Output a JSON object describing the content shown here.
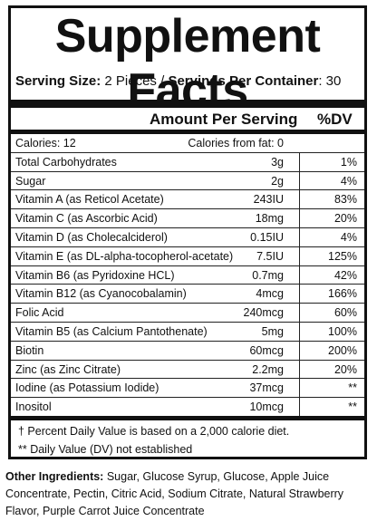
{
  "title": "Supplement Facts",
  "serving": {
    "size_label": "Serving Size:",
    "size_value": "2 Pieces",
    "separator": "/",
    "per_container_label": "Servings Per Container",
    "per_container_value": ": 30"
  },
  "headers": {
    "amount": "Amount Per Serving",
    "dv": "%DV"
  },
  "calories": {
    "label": "Calories: 12",
    "from_fat": "Calories from fat: 0"
  },
  "nutrients": [
    {
      "name": "Total Carbohydrates",
      "amount": "3g",
      "dv": "1%"
    },
    {
      "name": "Sugar",
      "amount": "2g",
      "dv": "4%"
    },
    {
      "name": "Vitamin A (as Reticol Acetate)",
      "amount": "243IU",
      "dv": "83%"
    },
    {
      "name": "Vitamin C (as Ascorbic Acid)",
      "amount": "18mg",
      "dv": "20%"
    },
    {
      "name": "Vitamin D (as Cholecalciderol)",
      "amount": "0.15IU",
      "dv": "4%"
    },
    {
      "name": "Vitamin E (as DL-alpha-tocopherol-acetate)",
      "amount": "7.5IU",
      "dv": "125%"
    },
    {
      "name": "Vitamin B6 (as Pyridoxine HCL)",
      "amount": "0.7mg",
      "dv": "42%"
    },
    {
      "name": "Vitamin B12 (as Cyanocobalamin)",
      "amount": "4mcg",
      "dv": "166%"
    },
    {
      "name": "Folic Acid",
      "amount": "240mcg",
      "dv": "60%"
    },
    {
      "name": "Vitamin B5 (as Calcium Pantothenate)",
      "amount": "5mg",
      "dv": "100%"
    },
    {
      "name": "Biotin",
      "amount": "60mcg",
      "dv": "200%"
    },
    {
      "name": "Zinc (as Zinc Citrate)",
      "amount": "2.2mg",
      "dv": "20%"
    },
    {
      "name": "Iodine (as Potassium Iodide)",
      "amount": "37mcg",
      "dv": "**"
    },
    {
      "name": "Inositol",
      "amount": "10mcg",
      "dv": "**"
    }
  ],
  "footnotes": {
    "daily_value": "†  Percent Daily Value is based on a 2,000 calorie diet.",
    "not_established": "** Daily Value (DV) not established"
  },
  "ingredients": {
    "label": "Other Ingredients:",
    "text": "Sugar, Glucose Syrup, Glucose, Apple Juice Concentrate, Pectin, Citric Acid, Sodium Citrate, Natural Strawberry Flavor, Purple Carrot Juice Concentrate"
  }
}
